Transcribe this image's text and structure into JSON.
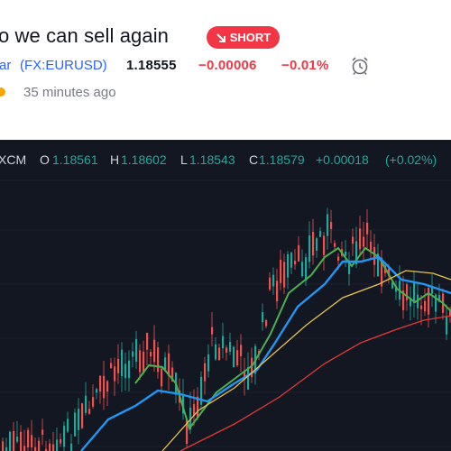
{
  "idea": {
    "title": "o we can sell again",
    "badge": "SHORT",
    "badge_color": "#f23645"
  },
  "ticker": {
    "name_fragment": "ar",
    "symbol": "(FX:EURUSD)",
    "price": "1.18555",
    "change": "−0.00006",
    "change_pct": "−0.01%"
  },
  "meta": {
    "posted": "35 minutes ago"
  },
  "legend": {
    "symbol_fragment": "XCM",
    "o_label": "O",
    "o_value": "1.18561",
    "h_label": "H",
    "h_value": "1.18602",
    "l_label": "L",
    "l_value": "1.18543",
    "c_label": "C",
    "c_value": "1.18579",
    "change": "+0.00018",
    "change_pct": "(+0.02%)"
  },
  "colors": {
    "chart_bg": "#131722",
    "up": "#26a69a",
    "down": "#ef5350",
    "ma_fast": "#4caf50",
    "ma_mid": "#2196f3",
    "ma_slow": "#e6c34a",
    "ma_long": "#e53935"
  },
  "icons": {
    "alarm": "alarm-clock-icon",
    "arrow": "arrow-down-right-icon"
  }
}
